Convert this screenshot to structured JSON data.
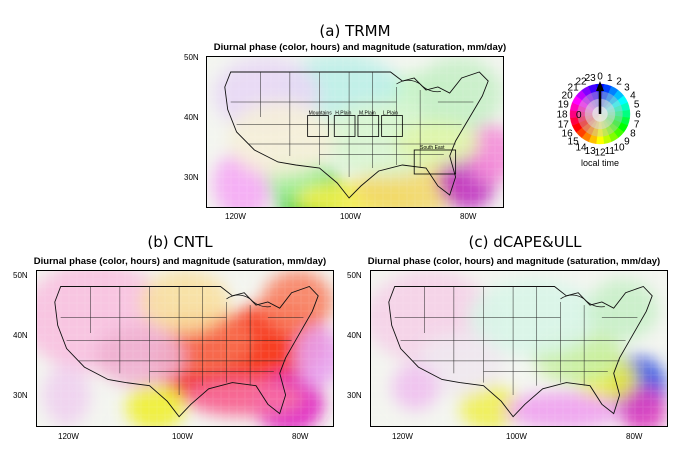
{
  "panels": [
    {
      "label": "(a) TRMM",
      "subtitle": "Diurnal phase (color, hours) and magnitude (saturation, mm/day)",
      "boxes": [
        "Mountains",
        "H.Plain",
        "M.Plain",
        "L.Plain",
        "South East"
      ]
    },
    {
      "label": "(b) CNTL",
      "subtitle": "Diurnal phase (color, hours) and magnitude (saturation, mm/day)"
    },
    {
      "label": "(c) dCAPE&ULL",
      "subtitle": "Diurnal phase (color, hours) and magnitude (saturation, mm/day)"
    }
  ],
  "axes": {
    "lat_ticks": [
      "50N",
      "40N",
      "30N"
    ],
    "lon_ticks": [
      "120W",
      "100W",
      "80W"
    ]
  },
  "wheel": {
    "hours": [
      "0",
      "1",
      "2",
      "3",
      "4",
      "5",
      "6",
      "7",
      "8",
      "9",
      "10",
      "11",
      "12",
      "13",
      "14",
      "15",
      "16",
      "17",
      "18",
      "19",
      "20",
      "21",
      "22",
      "23"
    ],
    "center_value": "0",
    "caption": "local time"
  }
}
